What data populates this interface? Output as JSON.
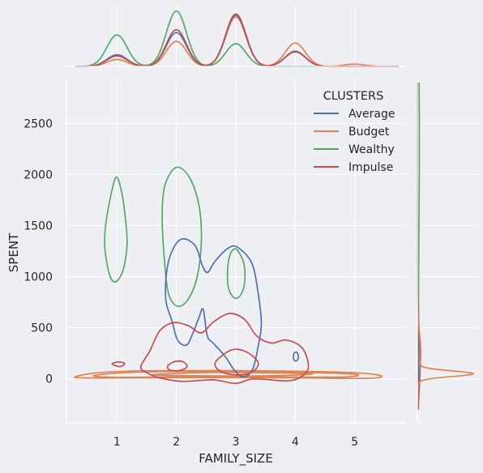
{
  "chart_data": {
    "type": "jointplot-kde",
    "xlabel": "FAMILY_SIZE",
    "ylabel": "SPENT",
    "x_ticks": [
      1,
      2,
      3,
      4,
      5
    ],
    "y_ticks": [
      0,
      500,
      1000,
      1500,
      2000,
      2500
    ],
    "xlim": [
      0.15,
      5.85
    ],
    "ylim": [
      -430,
      2930
    ],
    "grid": true,
    "legend": {
      "title": "CLUSTERS",
      "placement": "top-right",
      "entries": [
        "Average",
        "Budget",
        "Wealthy",
        "Impulse"
      ]
    },
    "colors": {
      "Average": "#4c72b0",
      "Budget": "#dd8452",
      "Wealthy": "#55a868",
      "Impulse": "#c44e52",
      "background": "#eeeff2",
      "grid": "#ffffff"
    },
    "series": [
      {
        "name": "Average",
        "x_marginal_peaks": [
          {
            "x": 1,
            "height": 0.2
          },
          {
            "x": 2,
            "height": 0.58
          },
          {
            "x": 3,
            "height": 0.88
          },
          {
            "x": 4,
            "height": 0.26
          }
        ],
        "contours": [
          [
            [
              1.85,
              1100
            ],
            [
              1.97,
              1300
            ],
            [
              2.12,
              1370
            ],
            [
              2.32,
              1300
            ],
            [
              2.43,
              1120
            ],
            [
              2.52,
              1040
            ],
            [
              2.65,
              1150
            ],
            [
              2.85,
              1270
            ],
            [
              3.02,
              1290
            ],
            [
              3.27,
              1130
            ],
            [
              3.38,
              820
            ],
            [
              3.43,
              540
            ],
            [
              3.38,
              330
            ],
            [
              3.28,
              90
            ],
            [
              3.12,
              20
            ],
            [
              2.97,
              90
            ],
            [
              2.82,
              220
            ],
            [
              2.62,
              350
            ],
            [
              2.52,
              420
            ],
            [
              2.45,
              680
            ],
            [
              2.38,
              600
            ],
            [
              2.28,
              450
            ],
            [
              2.17,
              330
            ],
            [
              2.02,
              380
            ],
            [
              1.93,
              560
            ],
            [
              1.82,
              780
            ],
            [
              1.85,
              1100
            ]
          ],
          [
            [
              3.97,
              200
            ],
            [
              3.98,
              250
            ],
            [
              4.02,
              260
            ],
            [
              4.05,
              230
            ],
            [
              4.04,
              185
            ],
            [
              4.0,
              175
            ],
            [
              3.97,
              200
            ]
          ]
        ]
      },
      {
        "name": "Budget",
        "x_marginal_peaks": [
          {
            "x": 1,
            "height": 0.12
          },
          {
            "x": 2,
            "height": 0.43
          },
          {
            "x": 3,
            "height": 0.85
          },
          {
            "x": 4,
            "height": 0.4
          },
          {
            "x": 5,
            "height": 0.04
          }
        ],
        "y_marginal_peak": {
          "y": 50,
          "width": 0.95
        },
        "contours": [
          [
            [
              0.3,
              20
            ],
            [
              0.6,
              55
            ],
            [
              1.2,
              75
            ],
            [
              2.0,
              80
            ],
            [
              3.0,
              80
            ],
            [
              4.0,
              75
            ],
            [
              5.0,
              60
            ],
            [
              5.45,
              30
            ],
            [
              5.2,
              5
            ],
            [
              4.0,
              10
            ],
            [
              3.0,
              12
            ],
            [
              2.0,
              12
            ],
            [
              1.0,
              8
            ],
            [
              0.4,
              10
            ],
            [
              0.3,
              20
            ]
          ],
          [
            [
              0.6,
              30
            ],
            [
              1.1,
              60
            ],
            [
              2.0,
              72
            ],
            [
              3.0,
              72
            ],
            [
              4.0,
              65
            ],
            [
              5.0,
              45
            ],
            [
              4.8,
              18
            ],
            [
              3.5,
              20
            ],
            [
              2.0,
              20
            ],
            [
              1.0,
              15
            ],
            [
              0.6,
              30
            ]
          ],
          [
            [
              1.6,
              40
            ],
            [
              2.5,
              62
            ],
            [
              3.5,
              60
            ],
            [
              4.3,
              48
            ],
            [
              3.5,
              30
            ],
            [
              2.5,
              30
            ],
            [
              1.6,
              40
            ]
          ]
        ]
      },
      {
        "name": "Wealthy",
        "x_marginal_peaks": [
          {
            "x": 1,
            "height": 0.54
          },
          {
            "x": 2,
            "height": 0.95
          },
          {
            "x": 3,
            "height": 0.39
          }
        ],
        "y_marginal_peak": {
          "y": 2300,
          "width": 0.03
        },
        "contours": [
          [
            [
              0.98,
              1970
            ],
            [
              1.07,
              1850
            ],
            [
              1.14,
              1580
            ],
            [
              1.17,
              1310
            ],
            [
              1.1,
              1060
            ],
            [
              0.98,
              950
            ],
            [
              0.88,
              1010
            ],
            [
              0.8,
              1250
            ],
            [
              0.8,
              1450
            ],
            [
              0.87,
              1720
            ],
            [
              0.98,
              1970
            ]
          ],
          [
            [
              2.0,
              2070
            ],
            [
              2.22,
              1970
            ],
            [
              2.38,
              1700
            ],
            [
              2.42,
              1350
            ],
            [
              2.35,
              1000
            ],
            [
              2.2,
              780
            ],
            [
              2.02,
              710
            ],
            [
              1.87,
              830
            ],
            [
              1.8,
              1150
            ],
            [
              1.76,
              1600
            ],
            [
              1.81,
              1900
            ],
            [
              2.0,
              2070
            ]
          ],
          [
            [
              3.0,
              1270
            ],
            [
              3.13,
              1140
            ],
            [
              3.15,
              950
            ],
            [
              3.08,
              820
            ],
            [
              2.98,
              790
            ],
            [
              2.88,
              880
            ],
            [
              2.86,
              1050
            ],
            [
              2.9,
              1210
            ],
            [
              3.0,
              1270
            ]
          ]
        ]
      },
      {
        "name": "Impulse",
        "x_marginal_peaks": [
          {
            "x": 1,
            "height": 0.18
          },
          {
            "x": 2,
            "height": 0.63
          },
          {
            "x": 3,
            "height": 0.9
          },
          {
            "x": 4,
            "height": 0.25
          }
        ],
        "y_marginal_peak": {
          "y": 180,
          "width": 0.05
        },
        "contours": [
          [
            [
              1.4,
              120
            ],
            [
              1.55,
              270
            ],
            [
              1.72,
              470
            ],
            [
              1.95,
              550
            ],
            [
              2.2,
              520
            ],
            [
              2.42,
              450
            ],
            [
              2.63,
              560
            ],
            [
              2.9,
              640
            ],
            [
              3.15,
              580
            ],
            [
              3.35,
              420
            ],
            [
              3.6,
              350
            ],
            [
              3.85,
              380
            ],
            [
              4.12,
              300
            ],
            [
              4.22,
              120
            ],
            [
              4.1,
              20
            ],
            [
              3.85,
              -20
            ],
            [
              3.3,
              0
            ],
            [
              3.0,
              -45
            ],
            [
              2.62,
              -10
            ],
            [
              2.1,
              -25
            ],
            [
              1.72,
              10
            ],
            [
              1.5,
              60
            ],
            [
              1.4,
              120
            ]
          ],
          [
            [
              0.92,
              145
            ],
            [
              1.02,
              165
            ],
            [
              1.13,
              150
            ],
            [
              1.05,
              120
            ],
            [
              0.92,
              145
            ]
          ],
          [
            [
              1.85,
              120
            ],
            [
              1.95,
              165
            ],
            [
              2.1,
              170
            ],
            [
              2.18,
              120
            ],
            [
              2.05,
              80
            ],
            [
              1.9,
              85
            ],
            [
              1.85,
              120
            ]
          ],
          [
            [
              2.65,
              150
            ],
            [
              2.82,
              250
            ],
            [
              3.0,
              290
            ],
            [
              3.22,
              250
            ],
            [
              3.38,
              150
            ],
            [
              3.25,
              60
            ],
            [
              3.0,
              40
            ],
            [
              2.75,
              70
            ],
            [
              2.65,
              150
            ]
          ]
        ]
      }
    ]
  }
}
